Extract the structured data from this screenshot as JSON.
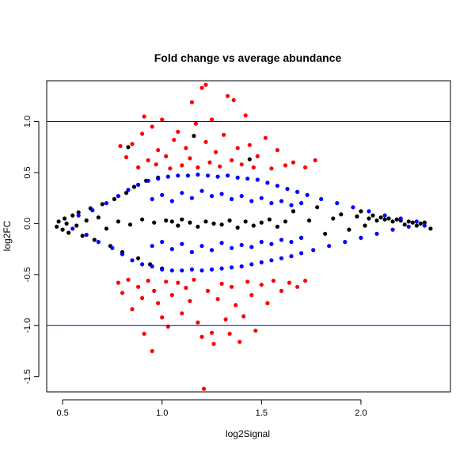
{
  "chart_data": {
    "type": "scatter",
    "title": "Fold change vs average abundance",
    "xlabel": "log2Signal",
    "ylabel": "log2FC",
    "xlim": [
      0.42,
      2.45
    ],
    "ylim": [
      -1.65,
      1.4
    ],
    "xticks": [
      0.5,
      1.0,
      1.5,
      2.0
    ],
    "xtick_labels": [
      "0.5",
      "1.0",
      "1.5",
      "2.0"
    ],
    "yticks": [
      -1.5,
      -1.0,
      -0.5,
      0.0,
      0.5,
      1.0
    ],
    "ytick_labels": [
      "-1.5",
      "-1.0",
      "-0.5",
      "0.0",
      "0.5",
      "1.0"
    ],
    "reference_lines": {
      "orientation": "horizontal",
      "y": [
        -1.0,
        1.0
      ],
      "color": "#0000ff"
    },
    "grid": false,
    "legend": "none",
    "colors": {
      "background": "#ffffff",
      "axes": "#000000"
    },
    "series": [
      {
        "color": "#000000",
        "points": [
          [
            0.47,
            -0.03
          ],
          [
            0.48,
            0.02
          ],
          [
            0.5,
            -0.06
          ],
          [
            0.51,
            0.05
          ],
          [
            0.52,
            0.0
          ],
          [
            0.53,
            -0.09
          ],
          [
            0.55,
            0.08
          ],
          [
            0.57,
            -0.02
          ],
          [
            0.58,
            0.11
          ],
          [
            0.6,
            -0.12
          ],
          [
            0.62,
            0.03
          ],
          [
            0.64,
            0.15
          ],
          [
            0.66,
            -0.16
          ],
          [
            0.68,
            0.06
          ],
          [
            0.7,
            0.19
          ],
          [
            0.72,
            -0.05
          ],
          [
            0.74,
            -0.22
          ],
          [
            0.76,
            0.24
          ],
          [
            0.78,
            0.02
          ],
          [
            0.8,
            -0.28
          ],
          [
            0.82,
            0.3
          ],
          [
            0.84,
            -0.01
          ],
          [
            0.86,
            0.36
          ],
          [
            0.88,
            -0.34
          ],
          [
            0.9,
            0.04
          ],
          [
            0.92,
            0.42
          ],
          [
            0.94,
            -0.4
          ],
          [
            0.96,
            0.01
          ],
          [
            0.98,
            0.45
          ],
          [
            1.0,
            -0.44
          ],
          [
            1.02,
            0.03
          ],
          [
            1.05,
            0.02
          ],
          [
            1.08,
            -0.02
          ],
          [
            1.1,
            0.04
          ],
          [
            1.14,
            0.01
          ],
          [
            1.18,
            -0.03
          ],
          [
            1.22,
            0.02
          ],
          [
            1.26,
            0.0
          ],
          [
            1.3,
            -0.01
          ],
          [
            1.34,
            0.03
          ],
          [
            1.38,
            -0.04
          ],
          [
            1.42,
            0.02
          ],
          [
            1.46,
            -0.02
          ],
          [
            1.5,
            0.01
          ],
          [
            1.54,
            0.04
          ],
          [
            1.58,
            -0.03
          ],
          [
            1.62,
            0.02
          ],
          [
            1.66,
            0.12
          ],
          [
            1.7,
            -0.14
          ],
          [
            1.74,
            0.03
          ],
          [
            1.78,
            0.16
          ],
          [
            1.82,
            -0.1
          ],
          [
            1.86,
            0.05
          ],
          [
            1.9,
            0.09
          ],
          [
            1.94,
            -0.06
          ],
          [
            1.98,
            0.07
          ],
          [
            2.0,
            0.12
          ],
          [
            2.02,
            -0.02
          ],
          [
            2.04,
            0.05
          ],
          [
            2.06,
            0.08
          ],
          [
            2.08,
            0.03
          ],
          [
            2.1,
            0.06
          ],
          [
            2.12,
            0.04
          ],
          [
            2.14,
            0.05
          ],
          [
            2.16,
            0.02
          ],
          [
            2.18,
            0.04
          ],
          [
            2.2,
            0.03
          ],
          [
            2.22,
            -0.01
          ],
          [
            2.24,
            0.02
          ],
          [
            2.26,
            0.01
          ],
          [
            2.28,
            -0.02
          ],
          [
            2.3,
            0.0
          ],
          [
            2.32,
            0.01
          ],
          [
            2.35,
            -0.05
          ],
          [
            0.83,
            0.75
          ],
          [
            1.16,
            0.86
          ],
          [
            1.44,
            0.63
          ]
        ]
      },
      {
        "color": "#0000ff",
        "points": [
          [
            0.55,
            -0.05
          ],
          [
            0.58,
            0.08
          ],
          [
            0.62,
            -0.11
          ],
          [
            0.65,
            0.13
          ],
          [
            0.68,
            -0.18
          ],
          [
            0.72,
            0.2
          ],
          [
            0.75,
            -0.24
          ],
          [
            0.78,
            0.27
          ],
          [
            0.8,
            -0.3
          ],
          [
            0.83,
            0.33
          ],
          [
            0.85,
            -0.36
          ],
          [
            0.88,
            0.38
          ],
          [
            0.9,
            -0.4
          ],
          [
            0.93,
            0.42
          ],
          [
            0.95,
            -0.42
          ],
          [
            0.98,
            0.44
          ],
          [
            1.0,
            -0.45
          ],
          [
            1.03,
            0.46
          ],
          [
            1.05,
            -0.46
          ],
          [
            1.08,
            0.47
          ],
          [
            1.1,
            -0.46
          ],
          [
            1.13,
            0.47
          ],
          [
            1.15,
            -0.45
          ],
          [
            1.18,
            0.48
          ],
          [
            1.2,
            -0.46
          ],
          [
            1.23,
            0.47
          ],
          [
            1.25,
            -0.45
          ],
          [
            1.28,
            0.46
          ],
          [
            1.3,
            -0.44
          ],
          [
            1.33,
            0.47
          ],
          [
            1.35,
            -0.43
          ],
          [
            1.38,
            0.45
          ],
          [
            1.4,
            -0.42
          ],
          [
            1.43,
            0.44
          ],
          [
            1.45,
            -0.4
          ],
          [
            1.48,
            0.43
          ],
          [
            1.5,
            -0.38
          ],
          [
            1.53,
            0.4
          ],
          [
            1.55,
            -0.36
          ],
          [
            1.58,
            0.37
          ],
          [
            1.6,
            -0.34
          ],
          [
            1.63,
            0.34
          ],
          [
            1.65,
            -0.32
          ],
          [
            1.68,
            0.31
          ],
          [
            1.7,
            -0.29
          ],
          [
            1.73,
            0.28
          ],
          [
            1.76,
            -0.26
          ],
          [
            1.8,
            0.24
          ],
          [
            1.84,
            -0.22
          ],
          [
            1.88,
            0.2
          ],
          [
            1.92,
            -0.18
          ],
          [
            1.96,
            0.16
          ],
          [
            2.0,
            -0.14
          ],
          [
            2.04,
            0.12
          ],
          [
            2.08,
            -0.1
          ],
          [
            2.12,
            0.08
          ],
          [
            2.16,
            -0.06
          ],
          [
            2.2,
            0.05
          ],
          [
            2.24,
            -0.03
          ],
          [
            2.28,
            0.02
          ],
          [
            2.32,
            -0.02
          ],
          [
            0.95,
            -0.22
          ],
          [
            1.0,
            -0.18
          ],
          [
            1.05,
            -0.25
          ],
          [
            1.1,
            -0.2
          ],
          [
            1.15,
            -0.28
          ],
          [
            1.2,
            -0.22
          ],
          [
            1.25,
            -0.26
          ],
          [
            1.3,
            -0.19
          ],
          [
            1.35,
            -0.24
          ],
          [
            1.4,
            -0.21
          ],
          [
            1.45,
            -0.23
          ],
          [
            1.5,
            -0.18
          ],
          [
            1.55,
            -0.2
          ],
          [
            1.6,
            -0.16
          ],
          [
            1.65,
            -0.18
          ],
          [
            1.7,
            -0.14
          ],
          [
            0.95,
            0.24
          ],
          [
            1.0,
            0.28
          ],
          [
            1.05,
            0.22
          ],
          [
            1.1,
            0.3
          ],
          [
            1.15,
            0.25
          ],
          [
            1.2,
            0.32
          ],
          [
            1.25,
            0.27
          ],
          [
            1.3,
            0.29
          ],
          [
            1.35,
            0.24
          ],
          [
            1.4,
            0.27
          ],
          [
            1.45,
            0.22
          ],
          [
            1.5,
            0.25
          ],
          [
            1.55,
            0.2
          ],
          [
            1.6,
            0.22
          ],
          [
            1.65,
            0.18
          ],
          [
            1.7,
            0.2
          ]
        ]
      },
      {
        "color": "#ff0000",
        "points": [
          [
            0.79,
            0.76
          ],
          [
            0.82,
            0.65
          ],
          [
            0.85,
            0.78
          ],
          [
            0.88,
            0.55
          ],
          [
            0.9,
            0.88
          ],
          [
            0.91,
            1.05
          ],
          [
            0.93,
            0.62
          ],
          [
            0.95,
            0.95
          ],
          [
            0.97,
            0.58
          ],
          [
            0.98,
            0.72
          ],
          [
            1.0,
            1.02
          ],
          [
            1.02,
            0.66
          ],
          [
            1.04,
            0.54
          ],
          [
            1.06,
            0.82
          ],
          [
            1.08,
            0.9
          ],
          [
            1.1,
            0.57
          ],
          [
            1.12,
            0.74
          ],
          [
            1.14,
            0.64
          ],
          [
            1.15,
            1.19
          ],
          [
            1.17,
            0.98
          ],
          [
            1.18,
            0.55
          ],
          [
            1.2,
            1.33
          ],
          [
            1.22,
            1.36
          ],
          [
            1.22,
            0.8
          ],
          [
            1.24,
            0.6
          ],
          [
            1.25,
            1.02
          ],
          [
            1.27,
            0.7
          ],
          [
            1.29,
            0.56
          ],
          [
            1.31,
            0.87
          ],
          [
            1.33,
            1.25
          ],
          [
            1.35,
            0.62
          ],
          [
            1.36,
            1.21
          ],
          [
            1.38,
            0.74
          ],
          [
            1.4,
            0.58
          ],
          [
            1.42,
            1.06
          ],
          [
            1.44,
            0.77
          ],
          [
            1.46,
            0.55
          ],
          [
            1.48,
            0.66
          ],
          [
            1.52,
            0.84
          ],
          [
            1.55,
            0.54
          ],
          [
            1.58,
            0.72
          ],
          [
            1.62,
            0.57
          ],
          [
            1.66,
            0.6
          ],
          [
            1.72,
            0.55
          ],
          [
            1.77,
            0.62
          ],
          [
            0.78,
            -0.58
          ],
          [
            0.8,
            -0.68
          ],
          [
            0.83,
            -0.55
          ],
          [
            0.85,
            -0.84
          ],
          [
            0.88,
            -0.62
          ],
          [
            0.9,
            -0.73
          ],
          [
            0.91,
            -1.08
          ],
          [
            0.93,
            -0.56
          ],
          [
            0.95,
            -1.25
          ],
          [
            0.96,
            -0.66
          ],
          [
            0.98,
            -0.78
          ],
          [
            1.0,
            -0.92
          ],
          [
            1.02,
            -0.57
          ],
          [
            1.03,
            -1.01
          ],
          [
            1.05,
            -0.7
          ],
          [
            1.08,
            -0.58
          ],
          [
            1.1,
            -0.88
          ],
          [
            1.12,
            -0.63
          ],
          [
            1.14,
            -0.76
          ],
          [
            1.16,
            -0.55
          ],
          [
            1.18,
            -0.97
          ],
          [
            1.2,
            -1.11
          ],
          [
            1.21,
            -1.62
          ],
          [
            1.23,
            -0.66
          ],
          [
            1.25,
            -1.07
          ],
          [
            1.26,
            -1.18
          ],
          [
            1.28,
            -0.74
          ],
          [
            1.3,
            -0.59
          ],
          [
            1.32,
            -0.94
          ],
          [
            1.34,
            -1.08
          ],
          [
            1.35,
            -0.62
          ],
          [
            1.37,
            -0.8
          ],
          [
            1.39,
            -1.16
          ],
          [
            1.41,
            -0.91
          ],
          [
            1.43,
            -0.57
          ],
          [
            1.45,
            -0.7
          ],
          [
            1.47,
            -1.05
          ],
          [
            1.5,
            -0.6
          ],
          [
            1.53,
            -0.78
          ],
          [
            1.56,
            -0.56
          ],
          [
            1.6,
            -0.66
          ],
          [
            1.64,
            -0.58
          ],
          [
            1.68,
            -0.62
          ],
          [
            1.72,
            -0.56
          ]
        ]
      }
    ]
  }
}
